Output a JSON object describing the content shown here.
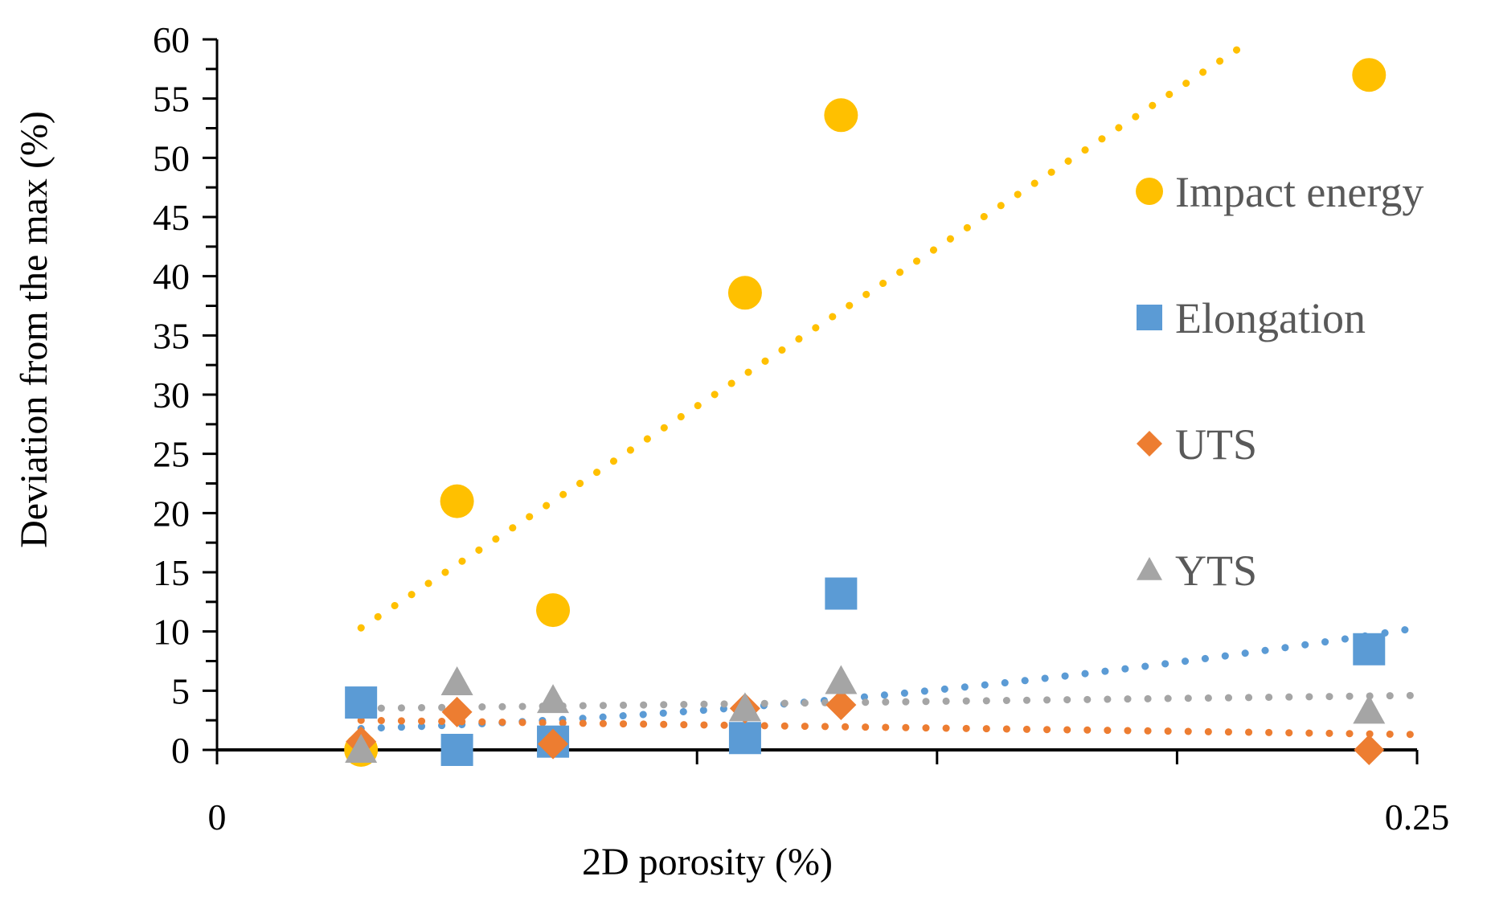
{
  "chart_data": {
    "type": "scatter",
    "title": "",
    "xlabel": "2D porosity (%)",
    "ylabel": "Deviation from the max  (%)",
    "xlim": [
      0,
      0.25
    ],
    "ylim": [
      0,
      60
    ],
    "x_tick_labels": [
      "0",
      "0.25"
    ],
    "x_minor_ticks": [
      0.05,
      0.1,
      0.15,
      0.2
    ],
    "y_ticks": [
      0,
      5,
      10,
      15,
      20,
      25,
      30,
      35,
      40,
      45,
      50,
      55,
      60
    ],
    "y_minor_step": 2.5,
    "grid": false,
    "legend_position": "right",
    "series": [
      {
        "name": "Impact energy",
        "marker": "circle",
        "color": "#FFC000",
        "x": [
          0.03,
          0.05,
          0.07,
          0.11,
          0.13,
          0.24
        ],
        "y": [
          0,
          21,
          11.8,
          38.6,
          53.6,
          57
        ],
        "trendline": {
          "type": "linear",
          "x_start": 0.03,
          "x_end": 0.215,
          "y_start": 10.3,
          "y_end": 59.8
        }
      },
      {
        "name": "Elongation",
        "marker": "square",
        "color": "#5B9BD5",
        "x": [
          0.03,
          0.05,
          0.07,
          0.11,
          0.13,
          0.24
        ],
        "y": [
          4,
          0,
          0.7,
          1,
          13.2,
          8.5
        ],
        "trendline": {
          "type": "polynomial",
          "x_start": 0.03,
          "x_end": 0.25,
          "y_start": 1.8,
          "y_end": 10.3
        }
      },
      {
        "name": "UTS",
        "marker": "diamond",
        "color": "#ED7D31",
        "x": [
          0.03,
          0.05,
          0.07,
          0.11,
          0.13,
          0.24
        ],
        "y": [
          0.7,
          3.2,
          0.5,
          3.5,
          3.8,
          0
        ],
        "trendline": {
          "type": "linear",
          "x_start": 0.03,
          "x_end": 0.25,
          "y_start": 2.5,
          "y_end": 1.3
        }
      },
      {
        "name": "YTS",
        "marker": "triangle",
        "color": "#A5A5A5",
        "x": [
          0.03,
          0.05,
          0.07,
          0.11,
          0.13,
          0.24
        ],
        "y": [
          0,
          5.7,
          4.2,
          3.5,
          5.8,
          3.3
        ],
        "trendline": {
          "type": "linear",
          "x_start": 0.03,
          "x_end": 0.25,
          "y_start": 3.5,
          "y_end": 4.6
        }
      }
    ]
  }
}
